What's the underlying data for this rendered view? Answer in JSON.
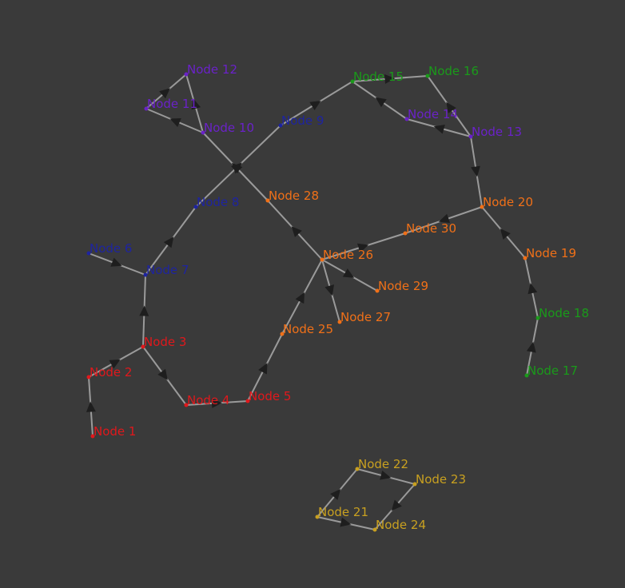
{
  "colors": {
    "background": "#3a3a3a",
    "edge": "#9a9a9a",
    "arrow": "#1e1e1e",
    "groups": {
      "red": "#e0181c",
      "blue": "#1e24a0",
      "purple": "#6a22c8",
      "green": "#1a9a1a",
      "orange": "#f07018",
      "gold": "#c8a020"
    }
  },
  "nodes": [
    {
      "id": "n1",
      "label": "Node 1",
      "group": "red"
    },
    {
      "id": "n2",
      "label": "Node 2",
      "group": "red"
    },
    {
      "id": "n3",
      "label": "Node 3",
      "group": "red"
    },
    {
      "id": "n4",
      "label": "Node 4",
      "group": "red"
    },
    {
      "id": "n5",
      "label": "Node 5",
      "group": "red"
    },
    {
      "id": "n6",
      "label": "Node 6",
      "group": "blue"
    },
    {
      "id": "n7",
      "label": "Node 7",
      "group": "blue"
    },
    {
      "id": "n8",
      "label": "Node 8",
      "group": "blue"
    },
    {
      "id": "n9",
      "label": "Node 9",
      "group": "blue"
    },
    {
      "id": "n10",
      "label": "Node 10",
      "group": "purple"
    },
    {
      "id": "n11",
      "label": "Node 11",
      "group": "purple"
    },
    {
      "id": "n12",
      "label": "Node 12",
      "group": "purple"
    },
    {
      "id": "n13",
      "label": "Node 13",
      "group": "purple"
    },
    {
      "id": "n14",
      "label": "Node 14",
      "group": "purple"
    },
    {
      "id": "n15",
      "label": "Node 15",
      "group": "green"
    },
    {
      "id": "n16",
      "label": "Node 16",
      "group": "green"
    },
    {
      "id": "n17",
      "label": "Node 17",
      "group": "green"
    },
    {
      "id": "n18",
      "label": "Node 18",
      "group": "green"
    },
    {
      "id": "n19",
      "label": "Node 19",
      "group": "orange"
    },
    {
      "id": "n20",
      "label": "Node 20",
      "group": "orange"
    },
    {
      "id": "n21",
      "label": "Node 21",
      "group": "gold"
    },
    {
      "id": "n22",
      "label": "Node 22",
      "group": "gold"
    },
    {
      "id": "n23",
      "label": "Node 23",
      "group": "gold"
    },
    {
      "id": "n24",
      "label": "Node 24",
      "group": "gold"
    },
    {
      "id": "n25",
      "label": "Node 25",
      "group": "orange"
    },
    {
      "id": "n26",
      "label": "Node 26",
      "group": "orange"
    },
    {
      "id": "n27",
      "label": "Node 27",
      "group": "orange"
    },
    {
      "id": "n28",
      "label": "Node 28",
      "group": "orange"
    },
    {
      "id": "n29",
      "label": "Node 29",
      "group": "orange"
    },
    {
      "id": "n30",
      "label": "Node 30",
      "group": "orange"
    }
  ],
  "edges": [
    {
      "from": "n1",
      "to": "n2"
    },
    {
      "from": "n2",
      "to": "n3"
    },
    {
      "from": "n3",
      "to": "n4"
    },
    {
      "from": "n4",
      "to": "n5"
    },
    {
      "from": "n5",
      "to": "n25"
    },
    {
      "from": "n25",
      "to": "n26"
    },
    {
      "from": "n26",
      "to": "n27"
    },
    {
      "from": "n26",
      "to": "n29"
    },
    {
      "from": "n26",
      "to": "n30"
    },
    {
      "from": "n26",
      "to": "n28"
    },
    {
      "from": "n3",
      "to": "n7"
    },
    {
      "from": "n6",
      "to": "n7"
    },
    {
      "from": "n7",
      "to": "n8"
    },
    {
      "from": "n8",
      "to": "n9"
    },
    {
      "from": "n9",
      "to": "n15"
    },
    {
      "from": "n28",
      "to": "n10"
    },
    {
      "from": "n10",
      "to": "n11"
    },
    {
      "from": "n11",
      "to": "n12"
    },
    {
      "from": "n10",
      "to": "n12"
    },
    {
      "from": "n15",
      "to": "n16"
    },
    {
      "from": "n14",
      "to": "n15"
    },
    {
      "from": "n13",
      "to": "n14"
    },
    {
      "from": "n13",
      "to": "n16"
    },
    {
      "from": "n13",
      "to": "n20"
    },
    {
      "from": "n20",
      "to": "n30"
    },
    {
      "from": "n19",
      "to": "n20"
    },
    {
      "from": "n18",
      "to": "n19"
    },
    {
      "from": "n17",
      "to": "n18"
    },
    {
      "from": "n21",
      "to": "n22"
    },
    {
      "from": "n22",
      "to": "n23"
    },
    {
      "from": "n23",
      "to": "n24"
    },
    {
      "from": "n21",
      "to": "n24"
    }
  ]
}
